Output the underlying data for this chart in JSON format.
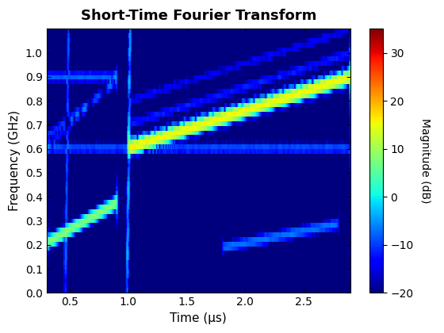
{
  "title": "Short-Time Fourier Transform",
  "xlabel": "Time (μs)",
  "ylabel": "Frequency (GHz)",
  "colorbar_label": "Magnitude (dB)",
  "clim": [
    -20,
    35
  ],
  "colorbar_ticks": [
    -20,
    -10,
    0,
    10,
    20,
    30
  ],
  "time_xlim": [
    0.3,
    2.9
  ],
  "freq_ylim": [
    0.0,
    1.1
  ],
  "fs": 2500000000.0,
  "background_color": "#ffffff",
  "title_fontsize": 13,
  "label_fontsize": 11
}
